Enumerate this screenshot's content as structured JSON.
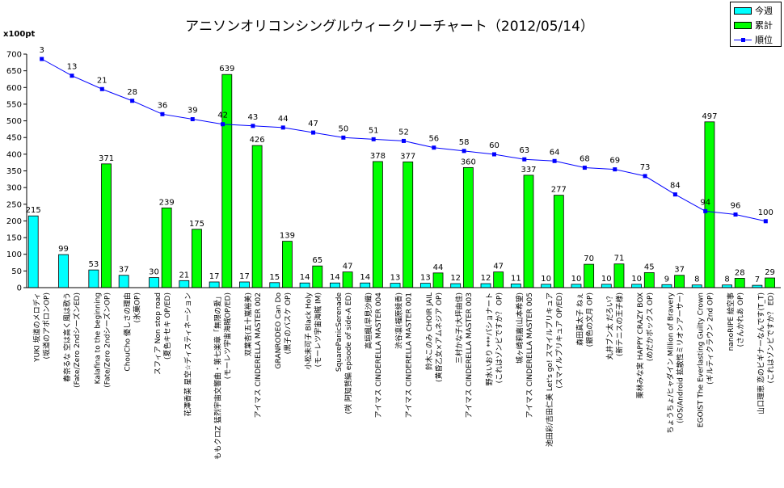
{
  "chart_data": {
    "type": "bar",
    "title": "アニソンオリコンシングルウィークリーチャート（2012/05/14）",
    "ylabel": "x100pt",
    "ylim": [
      0,
      700
    ],
    "yticks": [
      0,
      50,
      100,
      150,
      200,
      250,
      300,
      350,
      400,
      450,
      500,
      550,
      600,
      650,
      700
    ],
    "grid": false,
    "legend_position": "top-right",
    "categories": [
      [
        "YUKI 坂道のメロディ",
        "(坂道のアポロンOP)"
      ],
      [
        "春奈るな 空は高く風は歌う",
        "(Fate/Zero 2ndシーズンED)"
      ],
      [
        "Kalafina to the beginning",
        "(Fate/Zero 2ndシーズンOP)"
      ],
      [
        "ChouCho 優しさの理由",
        "(氷菓OP)"
      ],
      [
        "スフィア Non stop road",
        "(夏色キセキ OP/ED)"
      ],
      [
        "花澤香菜 星空☆ディスティネーション",
        ""
      ],
      [
        "ももクロZ 猛烈宇宙交響曲・第七楽章「無限の愛」",
        "(モーレツ宇宙海賊OP/ED)"
      ],
      [
        "双葉杏(五十嵐裕美)",
        "アイマス CINDERELLA MASTER 002"
      ],
      [
        "GRANRODEO Can Do",
        "(黒子のバスケ OP)"
      ],
      [
        "小松未可子 Black Holy",
        "(モーレツ宇宙海賊 IM)"
      ],
      [
        "SquarePanicSerenade",
        "(咲 阿知賀編 episode of side-A ED)"
      ],
      [
        "高垣楓(早見沙織)",
        "アイマス CINDERELLA MASTER 004"
      ],
      [
        "渋谷凛(福原綾香)",
        "アイマス CINDERELLA MASTER 001"
      ],
      [
        "鈴木このみ CHOIR JAIL",
        "(黄昏乙女×アムネジア OP)"
      ],
      [
        "三村かな子(大坪由佳)",
        "アイマス CINDERELLA MASTER 003"
      ],
      [
        "野水いおり ***パショナート",
        "(これはゾンビですか？ OP)"
      ],
      [
        "城ヶ崎莉嘉(山本希望)",
        "アイマス CINDERELLA MASTER 005"
      ],
      [
        "池田彩/吉田仁美 Let's go! スマイルプリキュア",
        "(スマイルプリキュア OP/ED)"
      ],
      [
        "森田真太子 ねぇ",
        "(銀色の文月 OP)"
      ],
      [
        "丸井ブン太 だろい？",
        "(新テニスの王子様)"
      ],
      [
        "栗林みな実 HAPPY CRAZY BOX",
        "(めだかボックス OP)"
      ],
      [
        "ちょうちょ/ヒャダイン Million of Bravery",
        "(iOS/Android 拡散性ミリオンアーサー)"
      ],
      [
        "EGOIST The Everlasting Guilty Crown",
        "(ギルティクラウン 2nd OP)"
      ],
      [
        "nanoRIPE 絵空事",
        "(さんかれあ OP)"
      ],
      [
        "山口理恵 恋のビギナーなんです(T_T)",
        "(これはゾンビですか？ ED)"
      ]
    ],
    "series": [
      {
        "name": "今週",
        "kind": "bar",
        "color": "#00ffff",
        "values": [
          215,
          99,
          53,
          37,
          30,
          21,
          17,
          17,
          15,
          14,
          14,
          14,
          13,
          13,
          12,
          12,
          11,
          10,
          10,
          10,
          10,
          9,
          8,
          8,
          7
        ]
      },
      {
        "name": "累計",
        "kind": "bar",
        "color": "#00ff00",
        "values": [
          null,
          null,
          371,
          null,
          239,
          175,
          639,
          426,
          139,
          65,
          47,
          378,
          377,
          44,
          360,
          47,
          337,
          277,
          70,
          71,
          45,
          37,
          497,
          28,
          29
        ]
      },
      {
        "name": "順位",
        "kind": "line",
        "color": "#0000ff",
        "values": [
          3,
          13,
          21,
          28,
          36,
          39,
          42,
          43,
          44,
          47,
          50,
          51,
          52,
          56,
          58,
          60,
          63,
          64,
          68,
          69,
          73,
          84,
          94,
          96,
          100
        ]
      }
    ]
  }
}
